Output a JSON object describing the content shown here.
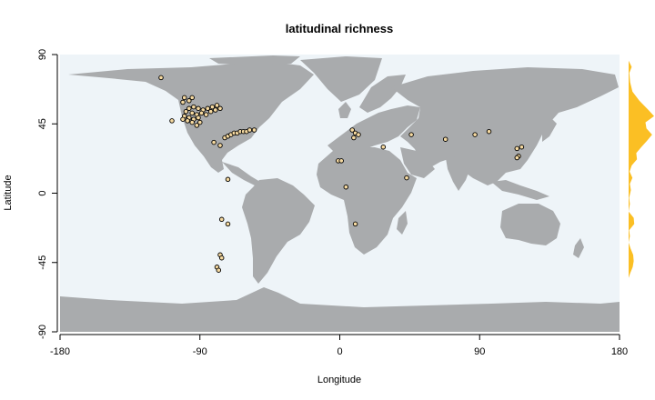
{
  "chart_data": {
    "type": "scatter",
    "title": "latitudinal richness",
    "xlabel": "Longitude",
    "ylabel": "Latitude",
    "xlim": [
      -180,
      180
    ],
    "ylim": [
      -90,
      90
    ],
    "x_ticks": [
      -180,
      -90,
      0,
      90,
      180
    ],
    "y_ticks": [
      -90,
      -45,
      0,
      45,
      90
    ],
    "grid": false,
    "background": "world map (land and ocean)",
    "colors": {
      "ocean": "#eef4f8",
      "land": "#a9abad",
      "points": "#f5d9a0",
      "richness": "#fbbf24"
    },
    "points": [
      {
        "lon": -115,
        "lat": 75
      },
      {
        "lon": -100,
        "lat": 62
      },
      {
        "lon": -95,
        "lat": 62
      },
      {
        "lon": -97,
        "lat": 60
      },
      {
        "lon": -101,
        "lat": 59
      },
      {
        "lon": -97,
        "lat": 55
      },
      {
        "lon": -94,
        "lat": 56
      },
      {
        "lon": -91,
        "lat": 55
      },
      {
        "lon": -88,
        "lat": 54
      },
      {
        "lon": -85,
        "lat": 55
      },
      {
        "lon": -82,
        "lat": 56
      },
      {
        "lon": -80,
        "lat": 54
      },
      {
        "lon": -79,
        "lat": 57
      },
      {
        "lon": -77,
        "lat": 55
      },
      {
        "lon": -99,
        "lat": 53
      },
      {
        "lon": -95,
        "lat": 52
      },
      {
        "lon": -92,
        "lat": 51
      },
      {
        "lon": -89,
        "lat": 52
      },
      {
        "lon": -86,
        "lat": 51
      },
      {
        "lon": -83,
        "lat": 53
      },
      {
        "lon": -100,
        "lat": 50
      },
      {
        "lon": -97,
        "lat": 49
      },
      {
        "lon": -94,
        "lat": 48
      },
      {
        "lon": -91,
        "lat": 49
      },
      {
        "lon": -98,
        "lat": 47
      },
      {
        "lon": -95,
        "lat": 46
      },
      {
        "lon": -90,
        "lat": 46
      },
      {
        "lon": -101,
        "lat": 48
      },
      {
        "lon": -108,
        "lat": 47
      },
      {
        "lon": -92,
        "lat": 44
      },
      {
        "lon": -81,
        "lat": 33
      },
      {
        "lon": -77,
        "lat": 31
      },
      {
        "lon": -74,
        "lat": 36
      },
      {
        "lon": -72,
        "lat": 37
      },
      {
        "lon": -70,
        "lat": 38
      },
      {
        "lon": -68,
        "lat": 39
      },
      {
        "lon": -66,
        "lat": 39
      },
      {
        "lon": -64,
        "lat": 40
      },
      {
        "lon": -62,
        "lat": 40
      },
      {
        "lon": -60,
        "lat": 40
      },
      {
        "lon": -58,
        "lat": 41
      },
      {
        "lon": -55,
        "lat": 41
      },
      {
        "lon": -72,
        "lat": 9
      },
      {
        "lon": -76,
        "lat": -17
      },
      {
        "lon": -72,
        "lat": -20
      },
      {
        "lon": -77,
        "lat": -40
      },
      {
        "lon": -76,
        "lat": -42
      },
      {
        "lon": -79,
        "lat": -48
      },
      {
        "lon": -78,
        "lat": -50
      },
      {
        "lon": 8,
        "lat": 41
      },
      {
        "lon": 10,
        "lat": 39
      },
      {
        "lon": 12,
        "lat": 38
      },
      {
        "lon": 9,
        "lat": 36
      },
      {
        "lon": 28,
        "lat": 30
      },
      {
        "lon": 46,
        "lat": 38
      },
      {
        "lon": 68,
        "lat": 35
      },
      {
        "lon": 87,
        "lat": 38
      },
      {
        "lon": 96,
        "lat": 40
      },
      {
        "lon": 117,
        "lat": 30
      },
      {
        "lon": 114,
        "lat": 29
      },
      {
        "lon": 115,
        "lat": 24
      },
      {
        "lon": 114,
        "lat": 23
      },
      {
        "lon": -1,
        "lat": 21
      },
      {
        "lon": 1,
        "lat": 21
      },
      {
        "lon": 43,
        "lat": 10
      },
      {
        "lon": 4,
        "lat": 4
      },
      {
        "lon": 10,
        "lat": -20
      }
    ],
    "richness_profile": [
      {
        "lat": 86,
        "value": 0
      },
      {
        "lat": 82,
        "value": 0.12
      },
      {
        "lat": 78,
        "value": 0.03
      },
      {
        "lat": 72,
        "value": 0.06
      },
      {
        "lat": 66,
        "value": 0.15
      },
      {
        "lat": 60,
        "value": 0.42
      },
      {
        "lat": 54,
        "value": 0.78
      },
      {
        "lat": 50,
        "value": 1.0
      },
      {
        "lat": 46,
        "value": 0.66
      },
      {
        "lat": 42,
        "value": 0.7
      },
      {
        "lat": 38,
        "value": 0.92
      },
      {
        "lat": 34,
        "value": 0.72
      },
      {
        "lat": 30,
        "value": 0.5
      },
      {
        "lat": 26,
        "value": 0.3
      },
      {
        "lat": 22,
        "value": 0.33
      },
      {
        "lat": 18,
        "value": 0.12
      },
      {
        "lat": 14,
        "value": 0.04
      },
      {
        "lat": 10,
        "value": 0.15
      },
      {
        "lat": 6,
        "value": 0.05
      },
      {
        "lat": 2,
        "value": 0.09
      },
      {
        "lat": -3,
        "value": 0.02
      },
      {
        "lat": -7,
        "value": 0.05
      },
      {
        "lat": -12,
        "value": 0.0
      },
      {
        "lat": -16,
        "value": 0.2
      },
      {
        "lat": -20,
        "value": 0.22
      },
      {
        "lat": -24,
        "value": 0.02
      },
      {
        "lat": -28,
        "value": 0.05
      },
      {
        "lat": -32,
        "value": 0.0
      },
      {
        "lat": -36,
        "value": 0.08
      },
      {
        "lat": -40,
        "value": 0.18
      },
      {
        "lat": -44,
        "value": 0.2
      },
      {
        "lat": -48,
        "value": 0.16
      },
      {
        "lat": -52,
        "value": 0.06
      },
      {
        "lat": -55,
        "value": 0
      }
    ]
  }
}
